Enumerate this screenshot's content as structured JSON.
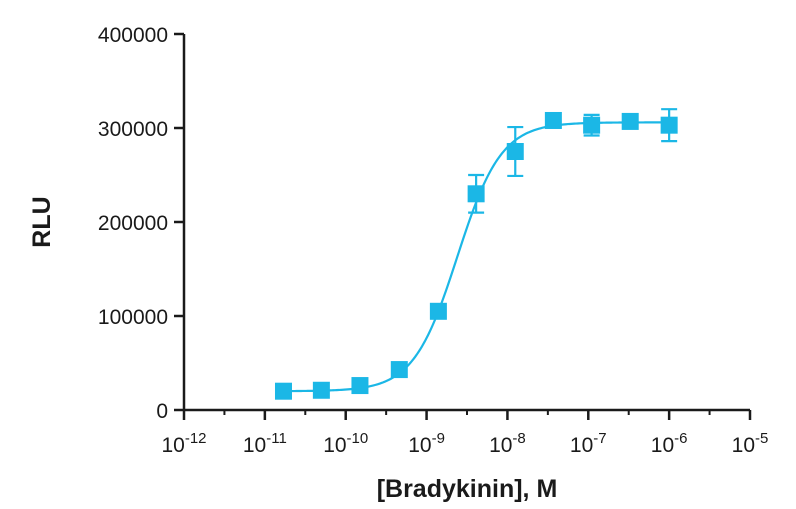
{
  "chart_data": {
    "type": "scatter",
    "title": "",
    "xlabel": "[Bradykinin], M",
    "ylabel": "RLU",
    "x_scale": "log",
    "xlim": [
      1e-12,
      1e-05
    ],
    "ylim": [
      0,
      400000
    ],
    "x_ticks": [
      {
        "base": "10",
        "exp": "-12"
      },
      {
        "base": "10",
        "exp": "-11"
      },
      {
        "base": "10",
        "exp": "-10"
      },
      {
        "base": "10",
        "exp": "-9"
      },
      {
        "base": "10",
        "exp": "-8"
      },
      {
        "base": "10",
        "exp": "-7"
      },
      {
        "base": "10",
        "exp": "-6"
      },
      {
        "base": "10",
        "exp": "-5"
      }
    ],
    "y_ticks": [
      "0",
      "100000",
      "200000",
      "300000",
      "400000"
    ],
    "grid": false,
    "legend": "none",
    "color": "#1bb7e6",
    "points": [
      {
        "x": 1.7e-11,
        "y": 20000,
        "err": 4000
      },
      {
        "x": 5e-11,
        "y": 21000,
        "err": 3000
      },
      {
        "x": 1.5e-10,
        "y": 26000,
        "err": 3000
      },
      {
        "x": 4.6e-10,
        "y": 43000,
        "err": 3000
      },
      {
        "x": 1.4e-09,
        "y": 105000,
        "err": 4000
      },
      {
        "x": 4.1e-09,
        "y": 230000,
        "err": 20000
      },
      {
        "x": 1.25e-08,
        "y": 275000,
        "err": 26000
      },
      {
        "x": 3.7e-08,
        "y": 308000,
        "err": 4000
      },
      {
        "x": 1.1e-07,
        "y": 303000,
        "err": 11000
      },
      {
        "x": 3.3e-07,
        "y": 307000,
        "err": 4000
      },
      {
        "x": 1e-06,
        "y": 303000,
        "err": 17000
      }
    ],
    "fit": {
      "bottom": 20000,
      "top": 306000,
      "log_ec50": -8.62,
      "hill_slope": 1.6,
      "x_start": 1.7e-11,
      "x_end": 1e-06
    }
  }
}
